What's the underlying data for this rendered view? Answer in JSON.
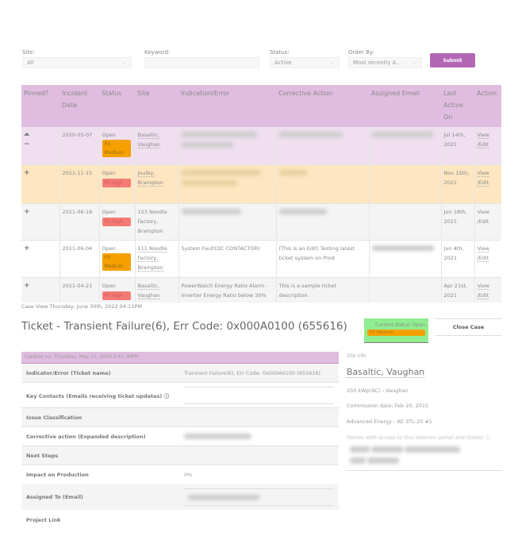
{
  "filters": {
    "site": {
      "label": "Site:",
      "value": "All"
    },
    "keyword": {
      "label": "Keyword:",
      "value": ""
    },
    "status": {
      "label": "Status:",
      "value": "Active"
    },
    "order_by": {
      "label": "Order By:",
      "value": "Most recently A..."
    },
    "submit_label": "Submit"
  },
  "table": {
    "headers": [
      "Pinned?",
      "Incident Date",
      "Status",
      "Site",
      "Indication/Error",
      "Corrective Action",
      "Assigned Email",
      "Last Active On",
      "Action"
    ],
    "rows": [
      {
        "pinned": true,
        "date": "2020-05-07",
        "status": "Open",
        "priority": "P2 Medium",
        "site": "Basaltic, Vaughan",
        "indication": "",
        "corrective": "",
        "email": "",
        "last_active": "Jul 14th, 2021",
        "action": "View /Edit"
      },
      {
        "pinned": false,
        "date": "2021-11-15",
        "status": "Open",
        "priority": "P1 High",
        "site": "Joulby, Brampton",
        "indication": "",
        "corrective": "",
        "email": "",
        "last_active": "Nov 15th, 2021",
        "action": "View /Edit"
      },
      {
        "pinned": false,
        "date": "2021-06-18",
        "status": "Open",
        "priority": "P1 High",
        "site": "153 Noodle Factory, Brampton",
        "indication": "",
        "corrective": "",
        "email": "",
        "last_active": "Jun 18th, 2021",
        "action": "View /Edit"
      },
      {
        "pinned": false,
        "date": "2021-06-04",
        "status": "Open",
        "priority": "P2 Medium",
        "site": "111 Noodle Factory, Brampton",
        "indication": "System Fault(DC CONTACTOR)",
        "corrective": "(This is an Edit) Testing latest ticket system on Prod",
        "email": "",
        "last_active": "Jun 4th, 2021",
        "action": "View /Edit"
      },
      {
        "pinned": false,
        "date": "2021-04-21",
        "status": "Open",
        "priority": "P1 High",
        "site": "Basaltic, Vaughan",
        "indication": "PowerWatch Energy Ratio Alarm - Inverter Energy Ratio below 30%",
        "corrective": "This is a sample ticket description.",
        "email": "",
        "last_active": "Apr 21st, 2021",
        "action": "View /Edit"
      }
    ]
  },
  "case": {
    "view_time": "Case View Thursday, June 30th, 2022 04:11PM",
    "title": "Ticket - Transient Failure(6), Err Code: 0x000A0100 (655616)",
    "current_status": "Current status: Open",
    "priority": "P2 Medium",
    "close_label": "Close Case",
    "created": "Created on: Thursday, May 21, 2020 2:41:30PM",
    "fields": [
      {
        "label": "Indicator/Error (Ticket name)",
        "value": "Transient Failure(6), Err Code: 0x000A0100 (655616)"
      },
      {
        "label": "Key Contacts (Emails receiving ticket updates) ⓘ",
        "value": ""
      },
      {
        "label": "Issue Classification",
        "value": ""
      },
      {
        "label": "Corrective action (Expanded description)",
        "value": ""
      },
      {
        "label": "Next Steps",
        "value": ""
      },
      {
        "label": "Impact on Production",
        "value": "0%"
      },
      {
        "label": "Assigned To (Email)",
        "value": ""
      },
      {
        "label": "Project Link",
        "value": ""
      }
    ]
  },
  "site_info": {
    "heading": "Site Info",
    "name": "Basaltic, Vaughan",
    "lines": [
      "250 kWp(AC) - Vaughan",
      "Commission date: Feb 20, 2015",
      "Advanced Energy - AE 3TL-20 #1"
    ],
    "access_label": "Parties with access to this Solantro portal and tickets ⓘ"
  },
  "colors": {
    "accent": "#b366b3",
    "header": "#e0bde0",
    "medium": "#f5a000",
    "high": "#f47b74",
    "status_box": "#90ee90"
  }
}
